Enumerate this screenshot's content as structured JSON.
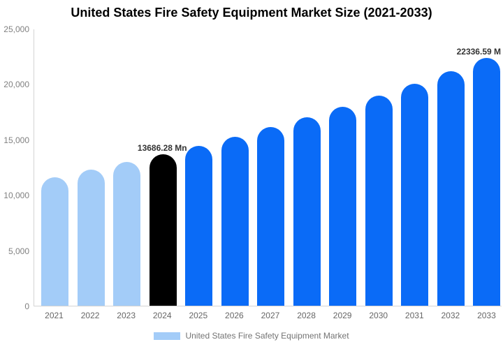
{
  "title": "United States Fire Safety Equipment Market Size (2021-2033)",
  "legend": {
    "label": "United States Fire Safety Equipment Market"
  },
  "chart_data": {
    "type": "bar",
    "title": "United States Fire Safety Equipment Market Size (2021-2033)",
    "xlabel": "",
    "ylabel": "",
    "ylim": [
      0,
      25000
    ],
    "grid": false,
    "legend_position": "bottom",
    "categories": [
      "2021",
      "2022",
      "2023",
      "2024",
      "2025",
      "2026",
      "2027",
      "2028",
      "2029",
      "2030",
      "2031",
      "2032",
      "2033"
    ],
    "values": [
      11621,
      12272,
      12959,
      13686.28,
      14454,
      15265,
      16121,
      17025,
      17980,
      18988,
      20053,
      21178,
      22336.59
    ],
    "ytick_labels": [
      "0",
      "5,000",
      "10,000",
      "15,000",
      "20,000",
      "25,000"
    ],
    "bar_roles": [
      "historical",
      "historical",
      "historical",
      "base",
      "forecast",
      "forecast",
      "forecast",
      "forecast",
      "forecast",
      "forecast",
      "forecast",
      "forecast",
      "forecast"
    ],
    "palette": {
      "historical": "#A3CCF8",
      "base": "#000000",
      "forecast": "#0A6BF7"
    },
    "axis_line_color": "#D4D4D4",
    "data_labels": [
      {
        "category": "2024",
        "text": "13686.28 Mn"
      },
      {
        "category": "2033",
        "text": "22336.59 M"
      }
    ],
    "series_name": "United States Fire Safety Equipment Market"
  }
}
